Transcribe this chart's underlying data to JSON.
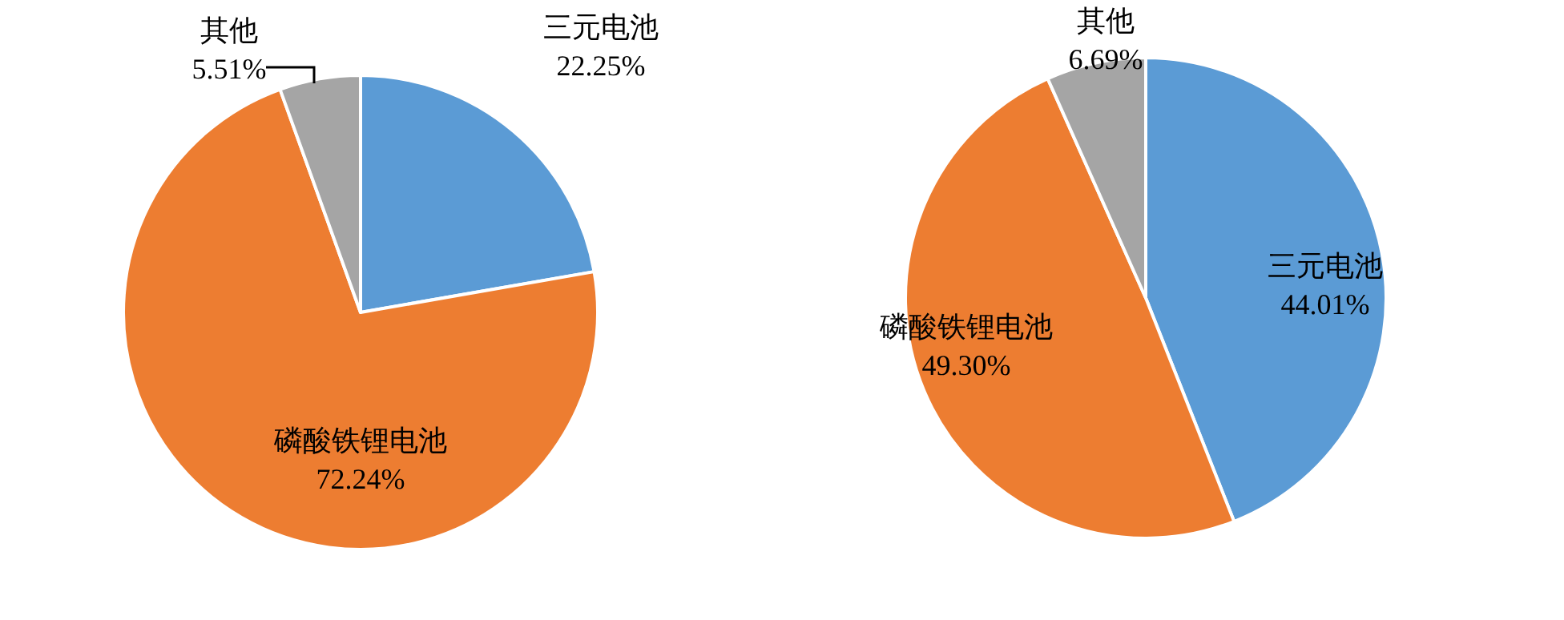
{
  "chart_data": [
    {
      "type": "pie",
      "categories": [
        "三元电池",
        "磷酸铁锂电池",
        "其他"
      ],
      "values": [
        22.25,
        72.24,
        5.51
      ],
      "colors": [
        "#5b9bd5",
        "#ed7d31",
        "#a5a5a5"
      ],
      "value_labels": [
        "22.25%",
        "72.24%",
        "5.51%"
      ]
    },
    {
      "type": "pie",
      "categories": [
        "三元电池",
        "磷酸铁锂电池",
        "其他"
      ],
      "values": [
        44.01,
        49.3,
        6.69
      ],
      "colors": [
        "#5b9bd5",
        "#ed7d31",
        "#a5a5a5"
      ],
      "value_labels": [
        "44.01%",
        "49.30%",
        "6.69%"
      ]
    }
  ]
}
